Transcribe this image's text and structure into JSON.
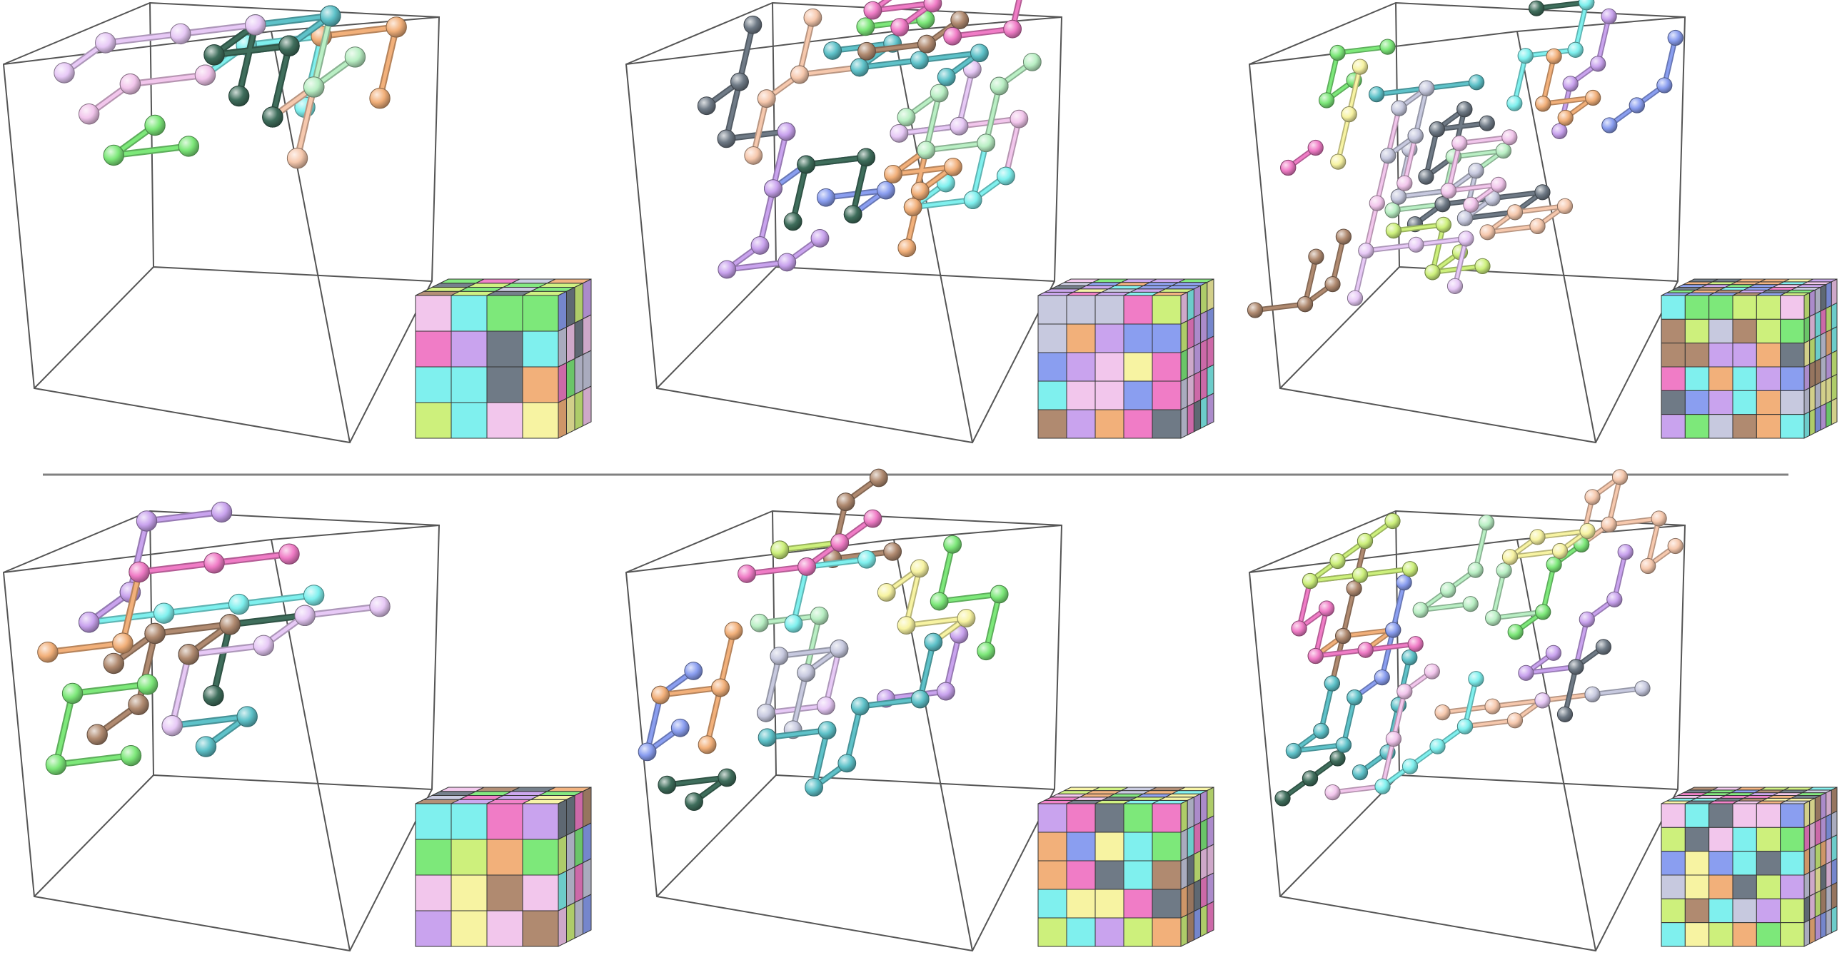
{
  "palette": {
    "green": "#7de87a",
    "cyan": "#7ff0ee",
    "orange": "#f2b07a",
    "brown": "#b08a70",
    "violet": "#c9a3ee",
    "pink": "#f07cc6",
    "blue": "#8a9ef0",
    "yellow": "#f7f3a2",
    "lime": "#cdf07c",
    "grey": "#c7c9df",
    "slate": "#6f7a86",
    "rose": "#f2c6ec",
    "peach": "#f6c8ad",
    "mint": "#b9efc4",
    "teal": "#5ec2c9",
    "darkgreen": "#3f6e5c",
    "lavender": "#e7c9f6",
    "frame": "#555555",
    "divider": "#808080"
  },
  "rows": [
    {
      "row_id": "top",
      "panels": [
        {
          "puzzle_size": 4,
          "piece_count": 9,
          "density": 1
        },
        {
          "puzzle_size": 5,
          "piece_count": 14,
          "density": 2
        },
        {
          "puzzle_size": 6,
          "piece_count": 20,
          "density": 3
        }
      ]
    },
    {
      "row_id": "bottom",
      "panels": [
        {
          "puzzle_size": 4,
          "piece_count": 9,
          "density": 1
        },
        {
          "puzzle_size": 5,
          "piece_count": 14,
          "density": 2
        },
        {
          "puzzle_size": 6,
          "piece_count": 20,
          "density": 3
        }
      ]
    }
  ]
}
